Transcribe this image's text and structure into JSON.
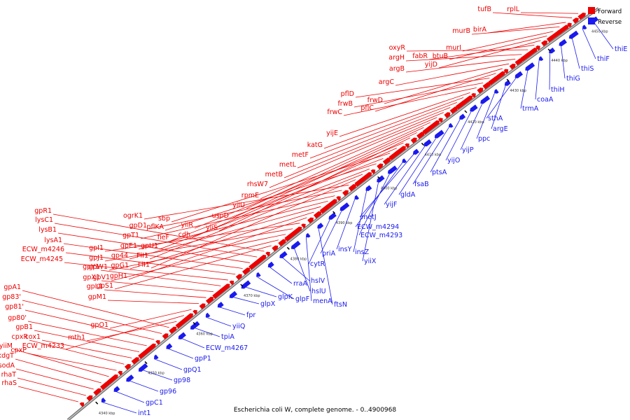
{
  "caption": "Escherichia coli W, complete genome. - 0..4900968",
  "legend": [
    {
      "label": "Forward",
      "color": "#ee0000"
    },
    {
      "label": "Reverse",
      "color": "#1a1aee"
    }
  ],
  "ticks": [
    "4340 kbp",
    "4350 kbp",
    "4360 kbp",
    "4370 kbp",
    "4380 kbp",
    "4390 kbp",
    "4400 kbp",
    "4410 kbp",
    "4420 kbp",
    "4430 kbp",
    "4440 kbp",
    "4450 kbp"
  ],
  "forward_genes": [
    "rhaS",
    "rhaT",
    "sodA",
    "kdgT",
    "yiiM",
    "cpxP",
    "cpxR",
    "cox1",
    "gpB1",
    "gp80'",
    "gp81'",
    "gp83'",
    "gpA1",
    "mth1",
    "ECW_m4233",
    "gpO1",
    "gpM1",
    "gpL1",
    "gpX1",
    "gpY1",
    "ECW_m4245",
    "ECW_m4246",
    "lysA1",
    "lysB1",
    "lysC1",
    "gpR1",
    "gpS1",
    "gpV1",
    "gpW1",
    "gpJ1",
    "gpI1",
    "gpH1",
    "gpG1",
    "gp44",
    "gpE1",
    "gpT1",
    "gpD1",
    "ogrK1",
    "FlI1",
    "FlI1",
    "gpU1",
    "pflKA",
    "fieF",
    "sbp",
    "cdh",
    "yiiR",
    "yiiS",
    "uspD",
    "yiiU",
    "rpmE",
    "rhsW7",
    "metB",
    "metL",
    "metF",
    "katG",
    "yijE",
    "frwC",
    "frwB",
    "pflD",
    "pflC",
    "frwD",
    "argC",
    "argB",
    "argH",
    "oxyR",
    "fabR",
    "yijD",
    "btuB",
    "murI",
    "murB",
    "birA",
    "tufB",
    "rplL"
  ],
  "reverse_genes": [
    "int1",
    "gpC1",
    "gp96",
    "gp98",
    "gpQ1",
    "gpP1",
    "ECW_m4267",
    "tpiA",
    "yiiQ",
    "fpr",
    "glpX",
    "glpK",
    "glpF",
    "rraA",
    "hslV",
    "hslU",
    "menA",
    "ftsN",
    "cytR",
    "priA",
    "insY",
    "insZ",
    "yiiX",
    "ECW_m4293",
    "ECW_m4294",
    "metJ",
    "yijF",
    "gldA",
    "fsaB",
    "ptsA",
    "yijO",
    "yijP",
    "ppc",
    "argE",
    "sthA",
    "trmA",
    "coaA",
    "thiH",
    "thiG",
    "thiS",
    "thiF",
    "thiE"
  ]
}
